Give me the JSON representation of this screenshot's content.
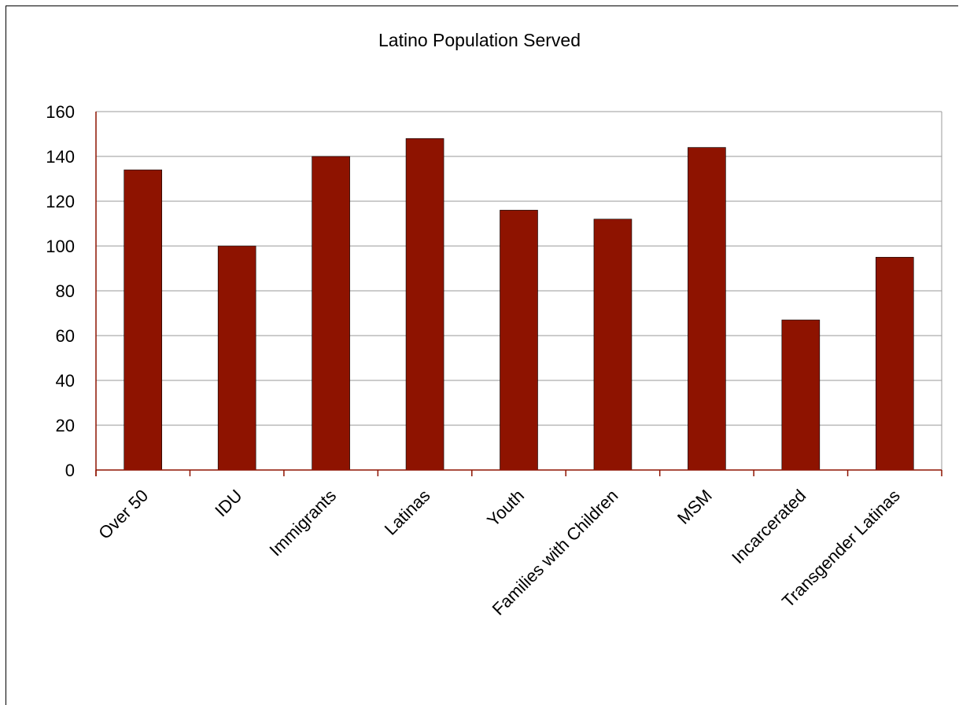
{
  "chart_data": {
    "type": "bar",
    "title": "Latino Population Served",
    "xlabel": "",
    "ylabel": "",
    "categories": [
      "Over 50",
      "IDU",
      "Immigrants",
      "Latinas",
      "Youth",
      "Families with Children",
      "MSM",
      "Incarcerated",
      "Transgender Latinas"
    ],
    "values": [
      134,
      100,
      140,
      148,
      116,
      112,
      144,
      67,
      95
    ],
    "ylim": [
      0,
      160
    ],
    "yticks": [
      0,
      20,
      40,
      60,
      80,
      100,
      120,
      140,
      160
    ],
    "grid": true,
    "legend": "none",
    "bar_color": "#8e1300",
    "axis_color": "#8e1300"
  }
}
